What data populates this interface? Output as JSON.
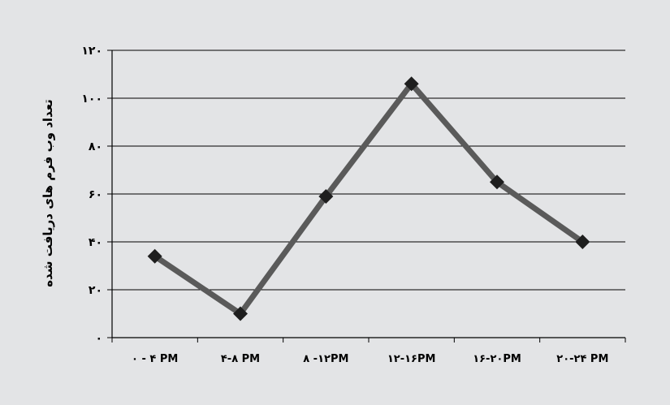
{
  "chart_data": {
    "type": "line",
    "title": "",
    "xlabel": "",
    "ylabel": "تعداد وب فرم های دریافت شده",
    "categories": [
      "۰ - ۴ PM",
      "۴-۸ PM",
      "۸ -۱۲PM",
      "۱۲-۱۶PM",
      "۱۶-۲۰PM",
      "۲۰-۲۴ PM"
    ],
    "y_ticks": [
      "۰",
      "۲۰",
      "۴۰",
      "۶۰",
      "۸۰",
      "۱۰۰",
      "۱۲۰"
    ],
    "ylim": [
      0,
      120
    ],
    "grid": true,
    "legend": "none",
    "series": [
      {
        "values": [
          34,
          10,
          59,
          106,
          65,
          40
        ],
        "color": "#5a5a5a",
        "marker": "diamond",
        "marker_color": "#1e1e1e"
      }
    ]
  }
}
